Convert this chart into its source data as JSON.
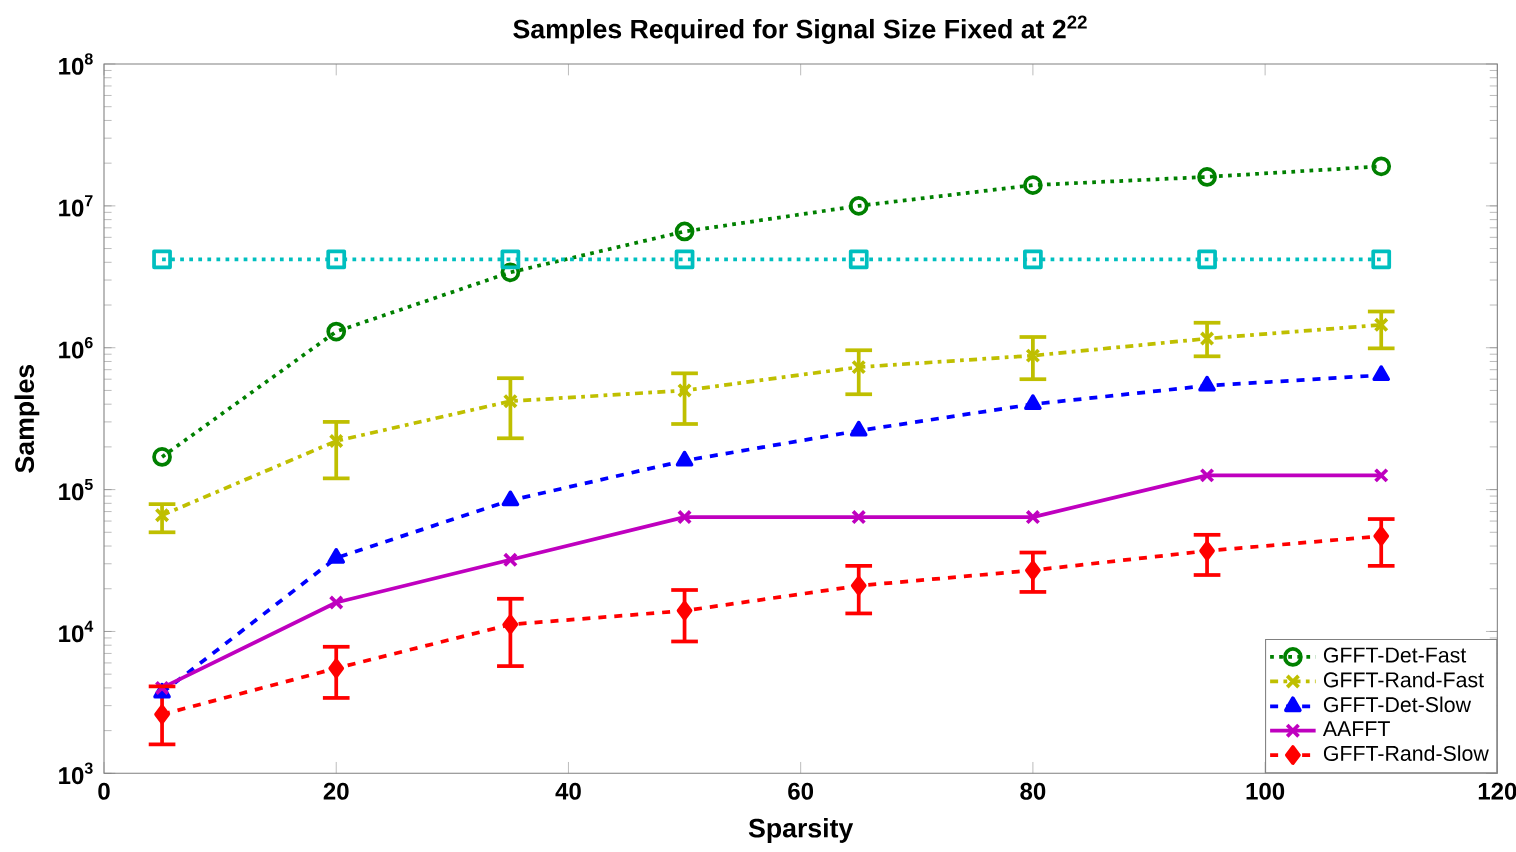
{
  "chart_data": {
    "type": "line",
    "title": "Samples Required for Signal Size Fixed at 2$^{22}$",
    "xlabel": "Sparsity",
    "ylabel": "Samples",
    "x": [
      5,
      20,
      35,
      50,
      65,
      80,
      95,
      110
    ],
    "log": "y",
    "grid": false,
    "legend": "bottom right",
    "xlim": [
      0,
      120
    ],
    "xticks": [
      0,
      20,
      40,
      60,
      80,
      100,
      120
    ],
    "ylim": [
      1000,
      100000000
    ],
    "yticks": [
      {
        "value": 1000,
        "label": "10$^{3}$"
      },
      {
        "value": 10000,
        "label": "10$^{4}$"
      },
      {
        "value": 100000,
        "label": "10$^{5}$"
      },
      {
        "value": 1000000,
        "label": "10$^{6}$"
      },
      {
        "value": 10000000,
        "label": "10$^{7}$"
      },
      {
        "value": 100000000,
        "label": "10$^{8}$"
      }
    ],
    "series": [
      {
        "name": "GFFT-Det-Fast",
        "color": "#008000",
        "marker": "circle",
        "line_style": "dotted",
        "values": [
          170000,
          1300000,
          3400000,
          6600000,
          10000000,
          14000000,
          16000000,
          19000000
        ]
      },
      {
        "color": "#00bfbf",
        "marker": "square",
        "line_style": "dotted",
        "values": [
          4200000,
          4200000,
          4200000,
          4200000,
          4200000,
          4200000,
          4200000,
          4200000
        ]
      },
      {
        "name": "GFFT-Rand-Fast",
        "color": "#bfbf00",
        "marker": "cross",
        "line_style": "dashdot",
        "values": [
          66000,
          220000,
          420000,
          500000,
          730000,
          880000,
          1160000,
          1450000
        ],
        "errors": [
          [
            50000,
            79000
          ],
          [
            120000,
            300000
          ],
          [
            230000,
            610000
          ],
          [
            290000,
            660000
          ],
          [
            470000,
            960000
          ],
          [
            600000,
            1190000
          ],
          [
            870000,
            1500000
          ],
          [
            990000,
            1800000
          ]
        ]
      },
      {
        "name": "GFFT-Det-Slow",
        "color": "#0000ff",
        "marker": "triangle",
        "line_style": "dashed",
        "values": [
          3700,
          33000,
          84000,
          160000,
          260000,
          400000,
          540000,
          640000
        ]
      },
      {
        "name": "AAFFT",
        "color": "#bf00bf",
        "marker": "cross",
        "line_style": "solid",
        "values": [
          4000,
          16000,
          32000,
          64000,
          64000,
          64000,
          126000,
          126000
        ]
      },
      {
        "name": "GFFT-Rand-Slow",
        "color": "#ff0000",
        "marker": "diamond",
        "line_style": "dashed",
        "values": [
          2600,
          5500,
          11200,
          14000,
          21000,
          27000,
          37000,
          47000
        ],
        "errors": [
          [
            1600,
            4100
          ],
          [
            3400,
            7800
          ],
          [
            5700,
            17000
          ],
          [
            8500,
            19600
          ],
          [
            13400,
            29000
          ],
          [
            19000,
            36000
          ],
          [
            25000,
            48000
          ],
          [
            29000,
            62000
          ]
        ]
      }
    ]
  }
}
